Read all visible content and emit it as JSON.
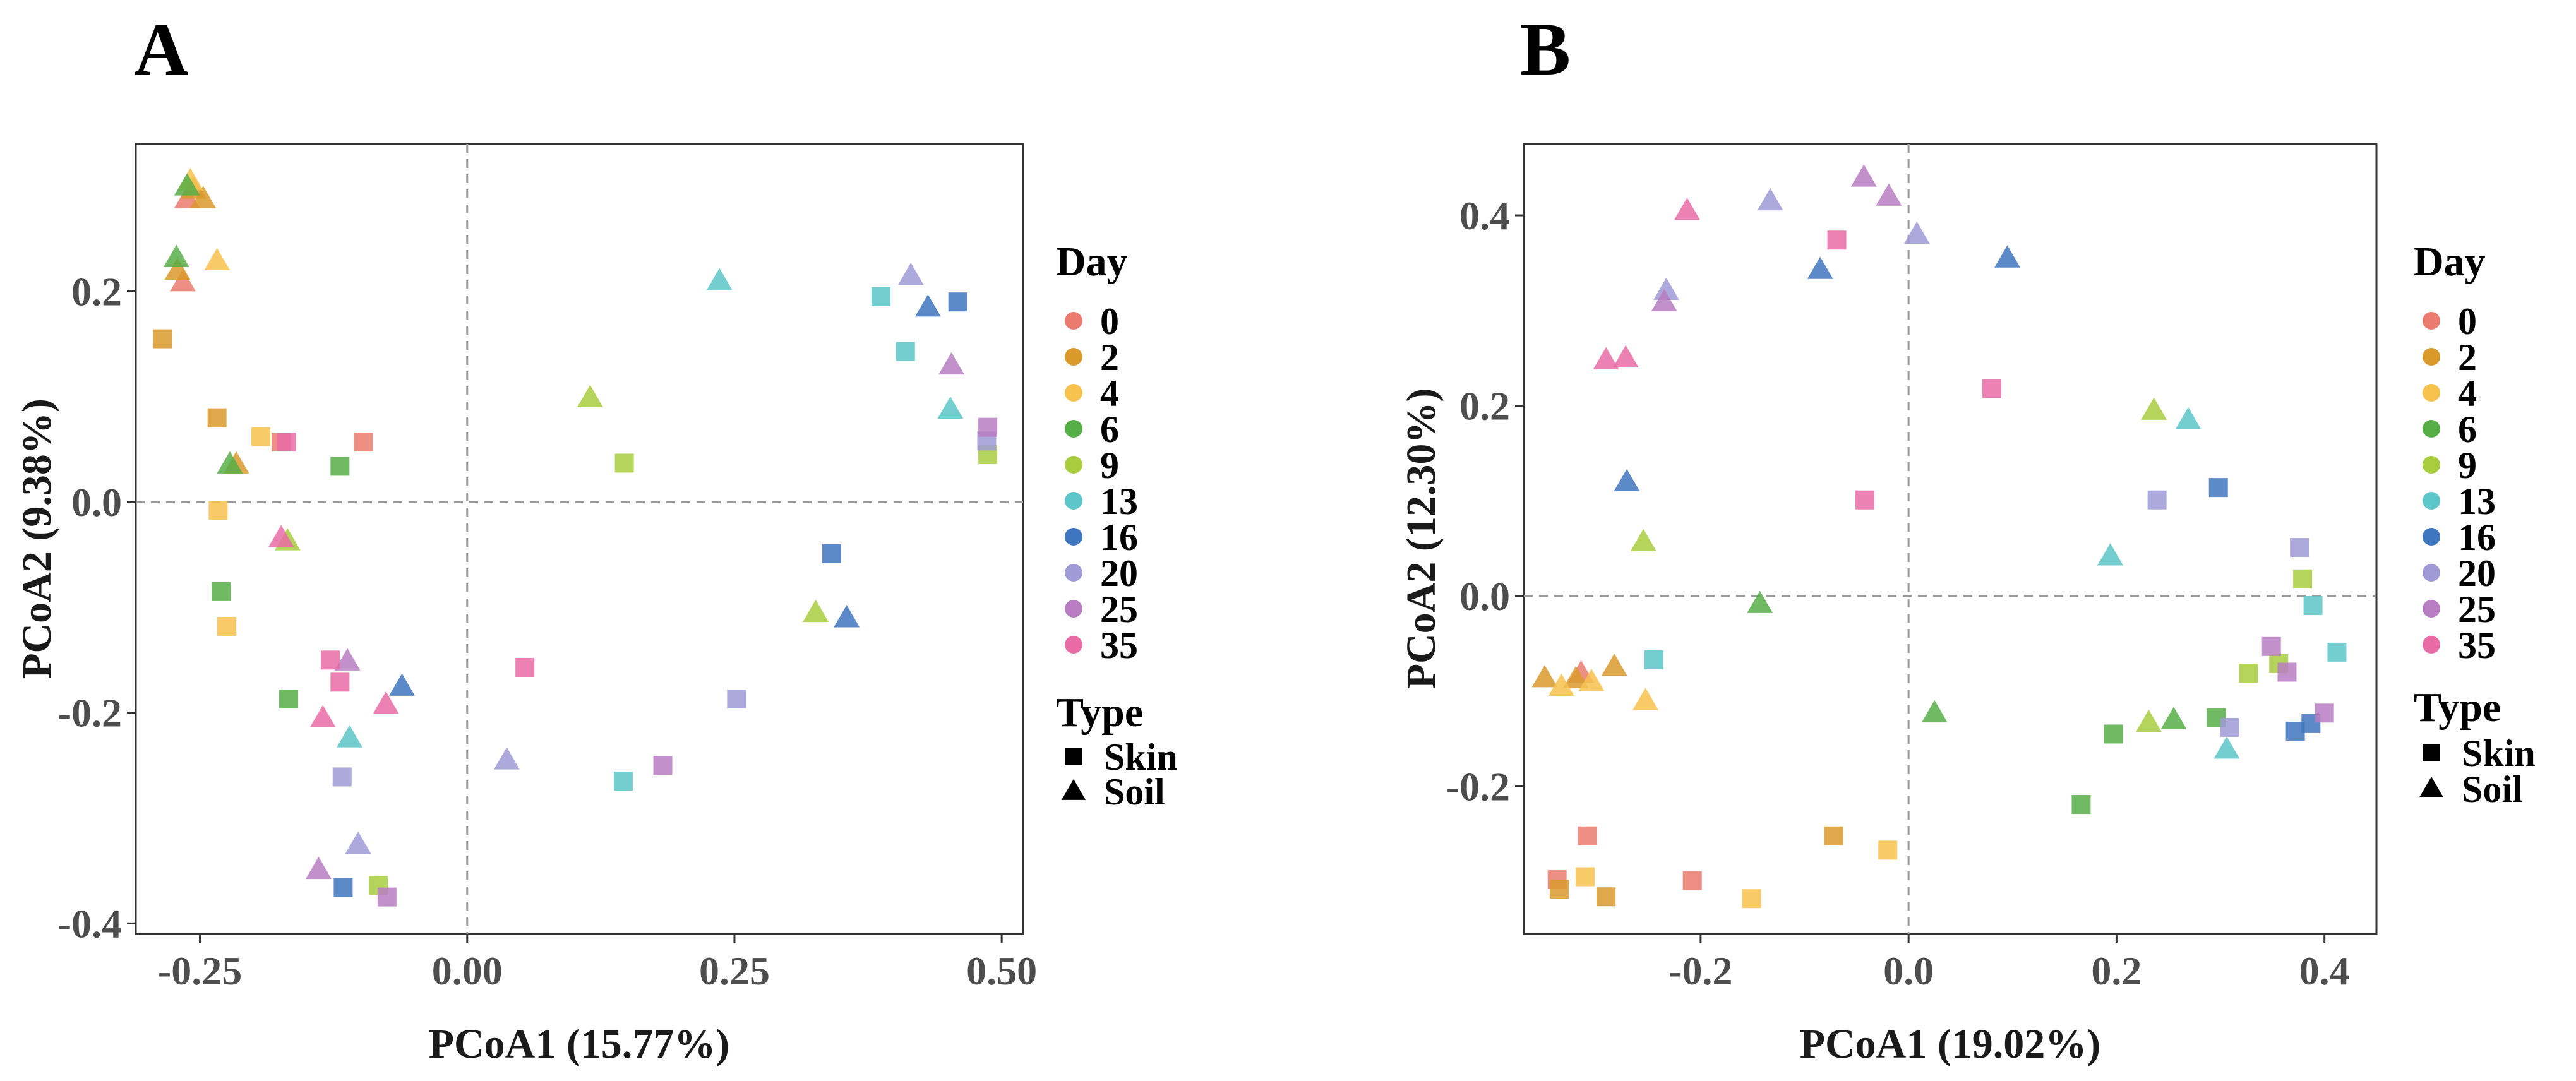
{
  "figure": {
    "legend": {
      "day_title": "Day",
      "type_title": "Type",
      "days": [
        {
          "label": "0",
          "color": "#EB7B6F"
        },
        {
          "label": "2",
          "color": "#D99A2B"
        },
        {
          "label": "4",
          "color": "#F7C24E"
        },
        {
          "label": "6",
          "color": "#56AE47"
        },
        {
          "label": "9",
          "color": "#A8CD3E"
        },
        {
          "label": "13",
          "color": "#5CC6C8"
        },
        {
          "label": "16",
          "color": "#3F76C0"
        },
        {
          "label": "20",
          "color": "#A09AD6"
        },
        {
          "label": "25",
          "color": "#B77CC1"
        },
        {
          "label": "35",
          "color": "#E96BA6"
        }
      ],
      "types": [
        {
          "label": "Skin",
          "shape": "square"
        },
        {
          "label": "Soil",
          "shape": "triangle"
        }
      ]
    }
  },
  "chart_data": [
    {
      "type": "scatter",
      "panel": "A",
      "xlabel": "PCoA1 (15.77%)",
      "ylabel": "PCoA2 (9.38%)",
      "xlim": [
        -0.31,
        0.52
      ],
      "ylim": [
        -0.41,
        0.34
      ],
      "xticks": [
        -0.25,
        0.0,
        0.25,
        0.5
      ],
      "xtick_labels": [
        "-0.25",
        "0.00",
        "0.25",
        "0.50"
      ],
      "yticks": [
        -0.4,
        -0.2,
        0.0,
        0.2
      ],
      "ytick_labels": [
        "-0.4",
        "-0.2",
        "0.0",
        "0.2"
      ],
      "zero_lines": true,
      "points": [
        {
          "x": -0.262,
          "y": 0.288,
          "day": "0",
          "type": "Soil"
        },
        {
          "x": -0.266,
          "y": 0.209,
          "day": "0",
          "type": "Soil"
        },
        {
          "x": -0.174,
          "y": 0.057,
          "day": "0",
          "type": "Skin"
        },
        {
          "x": -0.097,
          "y": 0.057,
          "day": "0",
          "type": "Skin"
        },
        {
          "x": -0.256,
          "y": 0.297,
          "day": "2",
          "type": "Soil"
        },
        {
          "x": -0.247,
          "y": 0.288,
          "day": "2",
          "type": "Soil"
        },
        {
          "x": -0.271,
          "y": 0.22,
          "day": "2",
          "type": "Soil"
        },
        {
          "x": -0.285,
          "y": 0.155,
          "day": "2",
          "type": "Skin"
        },
        {
          "x": -0.234,
          "y": 0.08,
          "day": "2",
          "type": "Skin"
        },
        {
          "x": -0.216,
          "y": 0.036,
          "day": "2",
          "type": "Soil"
        },
        {
          "x": -0.259,
          "y": 0.305,
          "day": "4",
          "type": "Soil"
        },
        {
          "x": -0.234,
          "y": 0.229,
          "day": "4",
          "type": "Soil"
        },
        {
          "x": -0.193,
          "y": 0.062,
          "day": "4",
          "type": "Skin"
        },
        {
          "x": -0.233,
          "y": -0.008,
          "day": "4",
          "type": "Skin"
        },
        {
          "x": -0.225,
          "y": -0.118,
          "day": "4",
          "type": "Skin"
        },
        {
          "x": -0.272,
          "y": 0.232,
          "day": "6",
          "type": "Soil"
        },
        {
          "x": -0.262,
          "y": 0.3,
          "day": "6",
          "type": "Soil"
        },
        {
          "x": -0.222,
          "y": 0.036,
          "day": "6",
          "type": "Soil"
        },
        {
          "x": -0.119,
          "y": 0.034,
          "day": "6",
          "type": "Skin"
        },
        {
          "x": -0.23,
          "y": -0.085,
          "day": "6",
          "type": "Skin"
        },
        {
          "x": -0.167,
          "y": -0.187,
          "day": "6",
          "type": "Skin"
        },
        {
          "x": -0.168,
          "y": -0.037,
          "day": "9",
          "type": "Soil"
        },
        {
          "x": 0.115,
          "y": 0.099,
          "day": "9",
          "type": "Soil"
        },
        {
          "x": 0.147,
          "y": 0.037,
          "day": "9",
          "type": "Skin"
        },
        {
          "x": 0.326,
          "y": -0.105,
          "day": "9",
          "type": "Soil"
        },
        {
          "x": 0.487,
          "y": 0.045,
          "day": "9",
          "type": "Skin"
        },
        {
          "x": -0.083,
          "y": -0.364,
          "day": "9",
          "type": "Skin"
        },
        {
          "x": 0.236,
          "y": 0.21,
          "day": "13",
          "type": "Soil"
        },
        {
          "x": 0.387,
          "y": 0.195,
          "day": "13",
          "type": "Skin"
        },
        {
          "x": 0.41,
          "y": 0.143,
          "day": "13",
          "type": "Skin"
        },
        {
          "x": 0.452,
          "y": 0.088,
          "day": "13",
          "type": "Soil"
        },
        {
          "x": -0.11,
          "y": -0.224,
          "day": "13",
          "type": "Soil"
        },
        {
          "x": 0.146,
          "y": -0.265,
          "day": "13",
          "type": "Skin"
        },
        {
          "x": 0.431,
          "y": 0.185,
          "day": "16",
          "type": "Soil"
        },
        {
          "x": 0.459,
          "y": 0.19,
          "day": "16",
          "type": "Skin"
        },
        {
          "x": 0.341,
          "y": -0.049,
          "day": "16",
          "type": "Skin"
        },
        {
          "x": 0.355,
          "y": -0.11,
          "day": "16",
          "type": "Soil"
        },
        {
          "x": -0.061,
          "y": -0.175,
          "day": "16",
          "type": "Soil"
        },
        {
          "x": -0.116,
          "y": -0.366,
          "day": "16",
          "type": "Skin"
        },
        {
          "x": 0.415,
          "y": 0.215,
          "day": "20",
          "type": "Soil"
        },
        {
          "x": 0.252,
          "y": -0.187,
          "day": "20",
          "type": "Skin"
        },
        {
          "x": 0.037,
          "y": -0.245,
          "day": "20",
          "type": "Soil"
        },
        {
          "x": -0.117,
          "y": -0.261,
          "day": "20",
          "type": "Skin"
        },
        {
          "x": -0.102,
          "y": -0.325,
          "day": "20",
          "type": "Soil"
        },
        {
          "x": 0.486,
          "y": 0.058,
          "day": "20",
          "type": "Skin"
        },
        {
          "x": 0.453,
          "y": 0.13,
          "day": "25",
          "type": "Soil"
        },
        {
          "x": 0.487,
          "y": 0.071,
          "day": "25",
          "type": "Skin"
        },
        {
          "x": 0.183,
          "y": -0.25,
          "day": "25",
          "type": "Skin"
        },
        {
          "x": -0.112,
          "y": -0.151,
          "day": "25",
          "type": "Soil"
        },
        {
          "x": -0.139,
          "y": -0.349,
          "day": "25",
          "type": "Soil"
        },
        {
          "x": -0.075,
          "y": -0.375,
          "day": "25",
          "type": "Skin"
        },
        {
          "x": -0.169,
          "y": 0.057,
          "day": "35",
          "type": "Skin"
        },
        {
          "x": -0.174,
          "y": -0.034,
          "day": "35",
          "type": "Soil"
        },
        {
          "x": 0.054,
          "y": -0.157,
          "day": "35",
          "type": "Skin"
        },
        {
          "x": -0.128,
          "y": -0.15,
          "day": "35",
          "type": "Skin"
        },
        {
          "x": -0.119,
          "y": -0.171,
          "day": "35",
          "type": "Skin"
        },
        {
          "x": -0.135,
          "y": -0.205,
          "day": "35",
          "type": "Soil"
        },
        {
          "x": -0.076,
          "y": -0.192,
          "day": "35",
          "type": "Soil"
        }
      ]
    },
    {
      "type": "scatter",
      "panel": "B",
      "xlabel": "PCoA1 (19.02%)",
      "ylabel": "PCoA2 (12.30%)",
      "xlim": [
        -0.37,
        0.45
      ],
      "ylim": [
        -0.355,
        0.475
      ],
      "xticks": [
        -0.2,
        0.0,
        0.2,
        0.4
      ],
      "xtick_labels": [
        "-0.2",
        "0.0",
        "0.2",
        "0.4"
      ],
      "yticks": [
        -0.2,
        0.0,
        0.2,
        0.4
      ],
      "ytick_labels": [
        "-0.2",
        "0.0",
        "0.2",
        "0.4"
      ],
      "zero_lines": true,
      "points": [
        {
          "x": -0.315,
          "y": -0.081,
          "day": "0",
          "type": "Soil"
        },
        {
          "x": -0.338,
          "y": -0.298,
          "day": "0",
          "type": "Skin"
        },
        {
          "x": -0.309,
          "y": -0.252,
          "day": "0",
          "type": "Skin"
        },
        {
          "x": -0.208,
          "y": -0.299,
          "day": "0",
          "type": "Skin"
        },
        {
          "x": -0.35,
          "y": -0.086,
          "day": "2",
          "type": "Soil"
        },
        {
          "x": -0.32,
          "y": -0.087,
          "day": "2",
          "type": "Soil"
        },
        {
          "x": -0.283,
          "y": -0.074,
          "day": "2",
          "type": "Soil"
        },
        {
          "x": -0.336,
          "y": -0.308,
          "day": "2",
          "type": "Skin"
        },
        {
          "x": -0.291,
          "y": -0.316,
          "day": "2",
          "type": "Skin"
        },
        {
          "x": -0.072,
          "y": -0.252,
          "day": "2",
          "type": "Skin"
        },
        {
          "x": -0.334,
          "y": -0.095,
          "day": "4",
          "type": "Soil"
        },
        {
          "x": -0.305,
          "y": -0.09,
          "day": "4",
          "type": "Soil"
        },
        {
          "x": -0.253,
          "y": -0.11,
          "day": "4",
          "type": "Soil"
        },
        {
          "x": -0.311,
          "y": -0.295,
          "day": "4",
          "type": "Skin"
        },
        {
          "x": -0.151,
          "y": -0.318,
          "day": "4",
          "type": "Skin"
        },
        {
          "x": -0.02,
          "y": -0.267,
          "day": "4",
          "type": "Skin"
        },
        {
          "x": -0.143,
          "y": -0.008,
          "day": "6",
          "type": "Soil"
        },
        {
          "x": 0.025,
          "y": -0.123,
          "day": "6",
          "type": "Soil"
        },
        {
          "x": 0.166,
          "y": -0.219,
          "day": "6",
          "type": "Skin"
        },
        {
          "x": 0.197,
          "y": -0.145,
          "day": "6",
          "type": "Skin"
        },
        {
          "x": 0.255,
          "y": -0.13,
          "day": "6",
          "type": "Soil"
        },
        {
          "x": 0.296,
          "y": -0.128,
          "day": "6",
          "type": "Skin"
        },
        {
          "x": -0.255,
          "y": 0.057,
          "day": "9",
          "type": "Soil"
        },
        {
          "x": 0.236,
          "y": 0.195,
          "day": "9",
          "type": "Soil"
        },
        {
          "x": 0.231,
          "y": -0.133,
          "day": "9",
          "type": "Soil"
        },
        {
          "x": 0.327,
          "y": -0.081,
          "day": "9",
          "type": "Skin"
        },
        {
          "x": 0.356,
          "y": -0.071,
          "day": "9",
          "type": "Skin"
        },
        {
          "x": 0.379,
          "y": 0.018,
          "day": "9",
          "type": "Skin"
        },
        {
          "x": -0.245,
          "y": -0.067,
          "day": "13",
          "type": "Skin"
        },
        {
          "x": 0.194,
          "y": 0.042,
          "day": "13",
          "type": "Soil"
        },
        {
          "x": 0.269,
          "y": 0.185,
          "day": "13",
          "type": "Soil"
        },
        {
          "x": 0.306,
          "y": -0.161,
          "day": "13",
          "type": "Soil"
        },
        {
          "x": 0.389,
          "y": -0.01,
          "day": "13",
          "type": "Skin"
        },
        {
          "x": 0.412,
          "y": -0.059,
          "day": "13",
          "type": "Skin"
        },
        {
          "x": -0.271,
          "y": 0.12,
          "day": "16",
          "type": "Soil"
        },
        {
          "x": -0.085,
          "y": 0.343,
          "day": "16",
          "type": "Soil"
        },
        {
          "x": 0.095,
          "y": 0.355,
          "day": "16",
          "type": "Soil"
        },
        {
          "x": 0.298,
          "y": 0.114,
          "day": "16",
          "type": "Skin"
        },
        {
          "x": 0.372,
          "y": -0.142,
          "day": "16",
          "type": "Skin"
        },
        {
          "x": 0.387,
          "y": -0.134,
          "day": "16",
          "type": "Skin"
        },
        {
          "x": -0.233,
          "y": 0.321,
          "day": "20",
          "type": "Soil"
        },
        {
          "x": -0.133,
          "y": 0.415,
          "day": "20",
          "type": "Soil"
        },
        {
          "x": 0.008,
          "y": 0.38,
          "day": "20",
          "type": "Soil"
        },
        {
          "x": 0.239,
          "y": 0.101,
          "day": "20",
          "type": "Skin"
        },
        {
          "x": 0.376,
          "y": 0.051,
          "day": "20",
          "type": "Skin"
        },
        {
          "x": 0.309,
          "y": -0.138,
          "day": "20",
          "type": "Skin"
        },
        {
          "x": -0.235,
          "y": 0.309,
          "day": "25",
          "type": "Soil"
        },
        {
          "x": -0.043,
          "y": 0.44,
          "day": "25",
          "type": "Soil"
        },
        {
          "x": -0.019,
          "y": 0.42,
          "day": "25",
          "type": "Soil"
        },
        {
          "x": 0.349,
          "y": -0.053,
          "day": "25",
          "type": "Skin"
        },
        {
          "x": 0.364,
          "y": -0.08,
          "day": "25",
          "type": "Skin"
        },
        {
          "x": 0.4,
          "y": -0.123,
          "day": "25",
          "type": "Skin"
        },
        {
          "x": -0.213,
          "y": 0.405,
          "day": "35",
          "type": "Soil"
        },
        {
          "x": -0.291,
          "y": 0.248,
          "day": "35",
          "type": "Soil"
        },
        {
          "x": -0.272,
          "y": 0.25,
          "day": "35",
          "type": "Soil"
        },
        {
          "x": -0.069,
          "y": 0.374,
          "day": "35",
          "type": "Skin"
        },
        {
          "x": 0.08,
          "y": 0.218,
          "day": "35",
          "type": "Skin"
        },
        {
          "x": -0.042,
          "y": 0.101,
          "day": "35",
          "type": "Skin"
        }
      ]
    }
  ]
}
